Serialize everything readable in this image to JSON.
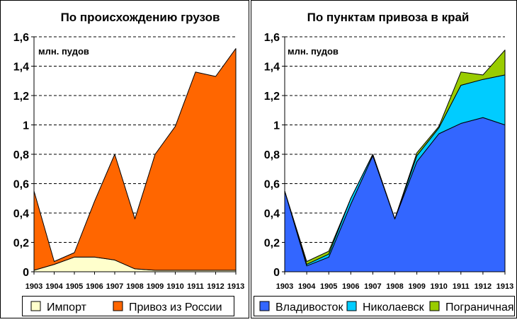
{
  "chart_data": [
    {
      "type": "area",
      "stacked": true,
      "title": "По происхождению грузов",
      "unit_label": "млн. пудов",
      "x": [
        "1903",
        "1904",
        "1905",
        "1906",
        "1907",
        "1908",
        "1909",
        "1910",
        "1911",
        "1912",
        "1913"
      ],
      "ylim": [
        0,
        1.6
      ],
      "yticks": [
        "0",
        "0,2",
        "0,4",
        "0,6",
        "0,8",
        "1",
        "1,2",
        "1,4",
        "1,6"
      ],
      "grid": true,
      "legend_position": "bottom",
      "series": [
        {
          "name": "Импорт",
          "color": "#ffffcc",
          "values": [
            0.01,
            0.05,
            0.1,
            0.1,
            0.08,
            0.02,
            0.01,
            0.01,
            0.01,
            0.01,
            0.01
          ]
        },
        {
          "name": "Привоз из России",
          "color": "#ff6600",
          "values": [
            0.54,
            0.02,
            0.03,
            0.38,
            0.72,
            0.34,
            0.79,
            0.98,
            1.35,
            1.32,
            1.51
          ]
        }
      ]
    },
    {
      "type": "area",
      "stacked": true,
      "title": "По пунктам привоза в край",
      "unit_label": "млн. пудов",
      "x": [
        "1903",
        "1904",
        "1905",
        "1906",
        "1907",
        "1908",
        "1909",
        "1910",
        "1911",
        "1912",
        "1913"
      ],
      "ylim": [
        0,
        1.6
      ],
      "yticks": [
        "0",
        "0,2",
        "0,4",
        "0,6",
        "0,8",
        "1",
        "1,2",
        "1,4",
        "1,6"
      ],
      "grid": true,
      "legend_position": "bottom",
      "series": [
        {
          "name": "Владивосток",
          "color": "#3366ff",
          "values": [
            0.55,
            0.04,
            0.1,
            0.46,
            0.79,
            0.36,
            0.75,
            0.94,
            1.01,
            1.05,
            1.0
          ]
        },
        {
          "name": "Николаевск",
          "color": "#00ccff",
          "values": [
            0.0,
            0.01,
            0.02,
            0.04,
            0.01,
            0.0,
            0.04,
            0.04,
            0.26,
            0.26,
            0.34
          ]
        },
        {
          "name": "Пограничная",
          "color": "#99cc00",
          "values": [
            0.0,
            0.02,
            0.02,
            0.0,
            0.0,
            0.0,
            0.02,
            0.01,
            0.09,
            0.03,
            0.17
          ]
        }
      ]
    }
  ]
}
